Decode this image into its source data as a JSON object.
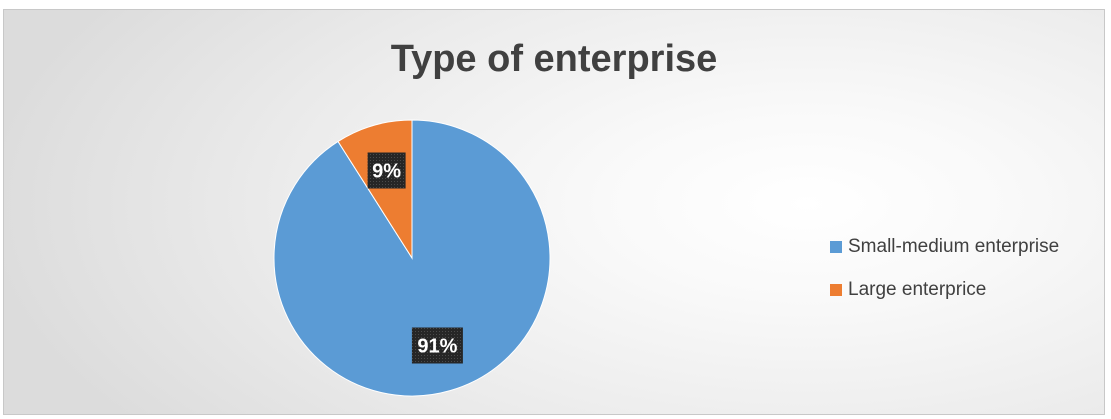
{
  "chart_data": {
    "type": "pie",
    "title": "Type of enterprise",
    "categories": [
      "Small-medium enterprise",
      "Large enterprice"
    ],
    "values": [
      91,
      9
    ],
    "data_labels": [
      "91%",
      "9%"
    ],
    "colors": [
      "#5b9bd5",
      "#ed7d31"
    ],
    "start_angle_deg": 0,
    "direction": "clockwise",
    "legend_position": "right",
    "label_box_color": "#262626",
    "label_text_color": "#ffffff"
  }
}
